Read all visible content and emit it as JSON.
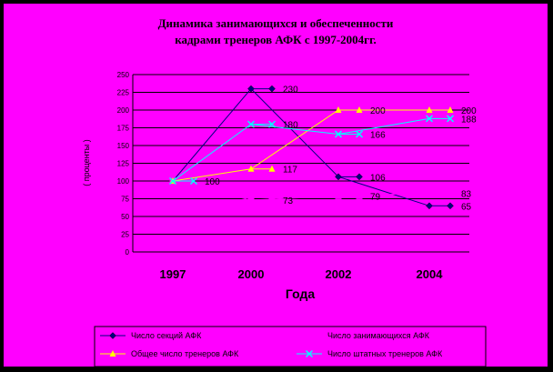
{
  "chart_data": {
    "type": "line",
    "title": "Динамика занимающихся и обеспеченности кадрами  тренеров АФК  с 1997-2004гг.",
    "title_line1": "Динамика занимающихся и обеспеченности",
    "title_line2": "кадрами  тренеров АФК  с 1997-2004гг.",
    "xlabel": "Года",
    "ylabel": "( проценты )",
    "x_ticks": [
      "1997",
      "2000",
      "2002",
      "2004"
    ],
    "ylim": [
      0,
      250
    ],
    "y_ticks": [
      "0",
      "25",
      "50",
      "75",
      "100",
      "125",
      "150",
      "175",
      "200",
      "225",
      "250"
    ],
    "grid": true,
    "legend_position": "bottom",
    "series": [
      {
        "name": "Число секций АФК",
        "color": "#000080",
        "marker": "diamond",
        "points": [
          {
            "x": "1997",
            "y": 100
          },
          {
            "x": "2000",
            "y": 230,
            "label": "230"
          },
          {
            "x": "2002",
            "y": 106,
            "label": "106"
          },
          {
            "x": "2004",
            "y": 65,
            "label": "65"
          }
        ]
      },
      {
        "name": "Число занимающихся АФК",
        "color": "#ff00ff",
        "marker": "square",
        "points": [
          {
            "x": "1997",
            "y": 100
          },
          {
            "x": "2000",
            "y": 73,
            "label": "73"
          },
          {
            "x": "2002",
            "y": 79,
            "label": "79"
          },
          {
            "x": "2004",
            "y": 83,
            "label": "83"
          }
        ]
      },
      {
        "name": "Общее число тренеров АФК",
        "color": "#ffff00",
        "marker": "triangle",
        "points": [
          {
            "x": "1997",
            "y": 100
          },
          {
            "x": "2000",
            "y": 117,
            "label": "117"
          },
          {
            "x": "2002",
            "y": 200,
            "label": "200"
          },
          {
            "x": "2004",
            "y": 200,
            "label": "200"
          }
        ]
      },
      {
        "name": "Число штатных тренеров АФК",
        "color": "#00ffff",
        "marker": "x",
        "points": [
          {
            "x": "1997",
            "y": 100,
            "label": "100"
          },
          {
            "x": "2000",
            "y": 180,
            "label": "180"
          },
          {
            "x": "2002",
            "y": 166,
            "label": "166"
          },
          {
            "x": "2004",
            "y": 188,
            "label": "188"
          }
        ]
      }
    ]
  }
}
